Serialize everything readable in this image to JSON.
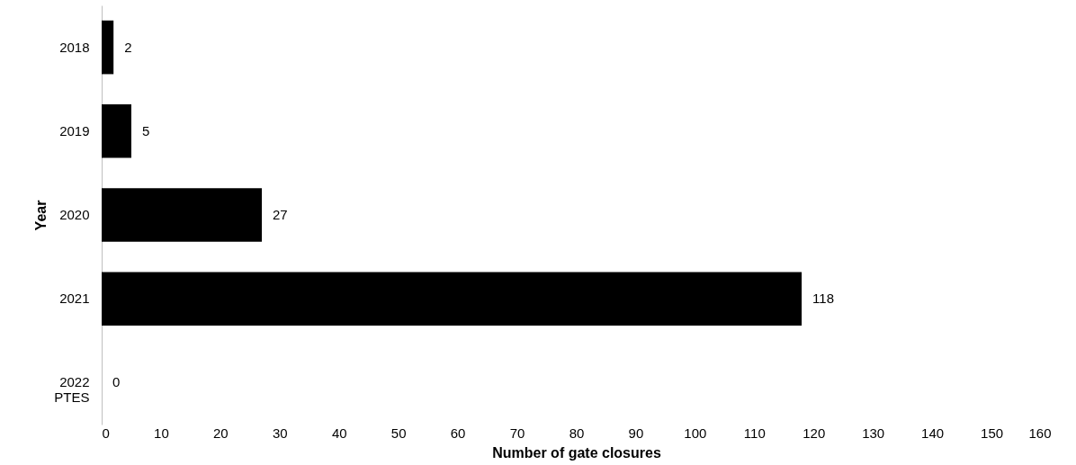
{
  "chart_data": {
    "type": "bar",
    "orientation": "horizontal",
    "categories": [
      "2018",
      "2019",
      "2020",
      "2021",
      "2022 PTES"
    ],
    "values": [
      2,
      5,
      27,
      118,
      0
    ],
    "color": "#000000",
    "xlim": [
      0,
      160
    ],
    "xticks": [
      0,
      10,
      20,
      30,
      40,
      50,
      60,
      70,
      80,
      90,
      100,
      110,
      120,
      130,
      140,
      150,
      160
    ],
    "xlabel": "Number of gate closures",
    "ylabel": "Year",
    "data_labels": true,
    "grid": false
  }
}
